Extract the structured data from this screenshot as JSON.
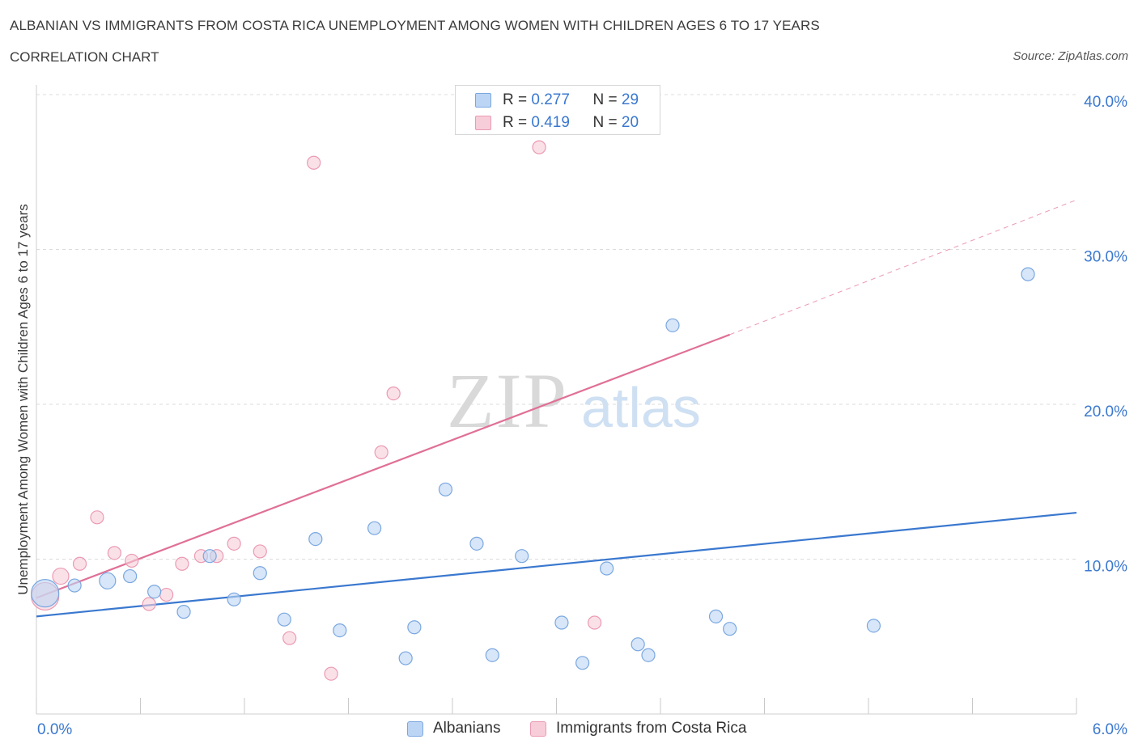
{
  "title": "ALBANIAN VS IMMIGRANTS FROM COSTA RICA UNEMPLOYMENT AMONG WOMEN WITH CHILDREN AGES 6 TO 17 YEARS",
  "subtitle": "CORRELATION CHART",
  "source": "Source: ZipAtlas.com",
  "watermark": {
    "zip": "ZIP",
    "atlas": "atlas"
  },
  "colors": {
    "blue_fill": "#bdd5f4",
    "blue_stroke": "#7aa7e0",
    "blue_line": "#3a78cf",
    "pink_fill": "#f7cdd9",
    "pink_stroke": "#eb9ab3",
    "pink_line": "#e07096",
    "axis_label": "#3a78cf",
    "grid": "#dcdcdc"
  },
  "legend": {
    "rows": [
      {
        "series": "Albanians",
        "r_label": "R =",
        "r_value": "0.277",
        "n_label": "N =",
        "n_value": "29"
      },
      {
        "series": "Immigrants from Costa Rica",
        "r_label": "R =",
        "r_value": "0.419",
        "n_label": "N =",
        "n_value": "20"
      }
    ]
  },
  "bottom_legend": [
    "Albanians",
    "Immigrants from Costa Rica"
  ],
  "chart_data": {
    "type": "scatter",
    "title": "ALBANIAN VS IMMIGRANTS FROM COSTA RICA UNEMPLOYMENT AMONG WOMEN WITH CHILDREN AGES 6 TO 17 YEARS",
    "xlabel": "",
    "ylabel": "Unemployment Among Women with Children Ages 6 to 17 years",
    "xlim": [
      0,
      6
    ],
    "ylim": [
      0,
      40
    ],
    "x_tick_labels": [
      "0.0%",
      "6.0%"
    ],
    "y_ticks": [
      10,
      20,
      30,
      40
    ],
    "y_tick_labels": [
      "10.0%",
      "20.0%",
      "30.0%",
      "40.0%"
    ],
    "grid": true,
    "series": [
      {
        "name": "Albanians",
        "color": "#3a78cf",
        "points": [
          {
            "x": 0.05,
            "y": 7.8,
            "size": "large"
          },
          {
            "x": 0.22,
            "y": 8.3
          },
          {
            "x": 0.41,
            "y": 8.6,
            "size": "medium"
          },
          {
            "x": 0.54,
            "y": 8.9
          },
          {
            "x": 0.68,
            "y": 7.9
          },
          {
            "x": 0.85,
            "y": 6.6
          },
          {
            "x": 1.0,
            "y": 10.2
          },
          {
            "x": 1.14,
            "y": 7.4
          },
          {
            "x": 1.29,
            "y": 9.1
          },
          {
            "x": 1.43,
            "y": 6.1
          },
          {
            "x": 1.61,
            "y": 11.3
          },
          {
            "x": 1.75,
            "y": 5.4
          },
          {
            "x": 1.95,
            "y": 12.0
          },
          {
            "x": 2.13,
            "y": 3.6
          },
          {
            "x": 2.18,
            "y": 5.6
          },
          {
            "x": 2.36,
            "y": 14.5
          },
          {
            "x": 2.54,
            "y": 11.0
          },
          {
            "x": 2.63,
            "y": 3.8
          },
          {
            "x": 2.8,
            "y": 10.2
          },
          {
            "x": 3.03,
            "y": 5.9
          },
          {
            "x": 3.15,
            "y": 3.3
          },
          {
            "x": 3.29,
            "y": 9.4
          },
          {
            "x": 3.47,
            "y": 4.5
          },
          {
            "x": 3.53,
            "y": 3.8
          },
          {
            "x": 3.67,
            "y": 25.1
          },
          {
            "x": 3.92,
            "y": 6.3
          },
          {
            "x": 4.0,
            "y": 5.5
          },
          {
            "x": 4.83,
            "y": 5.7
          },
          {
            "x": 5.72,
            "y": 28.4
          }
        ],
        "trend": {
          "x0": 0,
          "y0": 6.3,
          "x1": 6,
          "y1": 13.0
        }
      },
      {
        "name": "Immigrants from Costa Rica",
        "color": "#e07096",
        "points": [
          {
            "x": 0.05,
            "y": 7.6,
            "size": "large"
          },
          {
            "x": 0.14,
            "y": 8.9,
            "size": "medium"
          },
          {
            "x": 0.25,
            "y": 9.7
          },
          {
            "x": 0.35,
            "y": 12.7
          },
          {
            "x": 0.45,
            "y": 10.4
          },
          {
            "x": 0.55,
            "y": 9.9
          },
          {
            "x": 0.65,
            "y": 7.1
          },
          {
            "x": 0.75,
            "y": 7.7
          },
          {
            "x": 0.84,
            "y": 9.7
          },
          {
            "x": 0.95,
            "y": 10.2
          },
          {
            "x": 1.04,
            "y": 10.2
          },
          {
            "x": 1.14,
            "y": 11.0
          },
          {
            "x": 1.29,
            "y": 10.5
          },
          {
            "x": 1.46,
            "y": 4.9
          },
          {
            "x": 1.6,
            "y": 35.6
          },
          {
            "x": 1.7,
            "y": 2.6
          },
          {
            "x": 1.99,
            "y": 16.9
          },
          {
            "x": 2.06,
            "y": 20.7
          },
          {
            "x": 2.9,
            "y": 36.6
          },
          {
            "x": 3.22,
            "y": 5.9
          }
        ],
        "trend": {
          "x0": 0,
          "y0": 7.5,
          "x1": 4.0,
          "y1": 24.5,
          "dashed_to_x": 6.0,
          "dashed_to_y": 33.2
        }
      }
    ]
  }
}
